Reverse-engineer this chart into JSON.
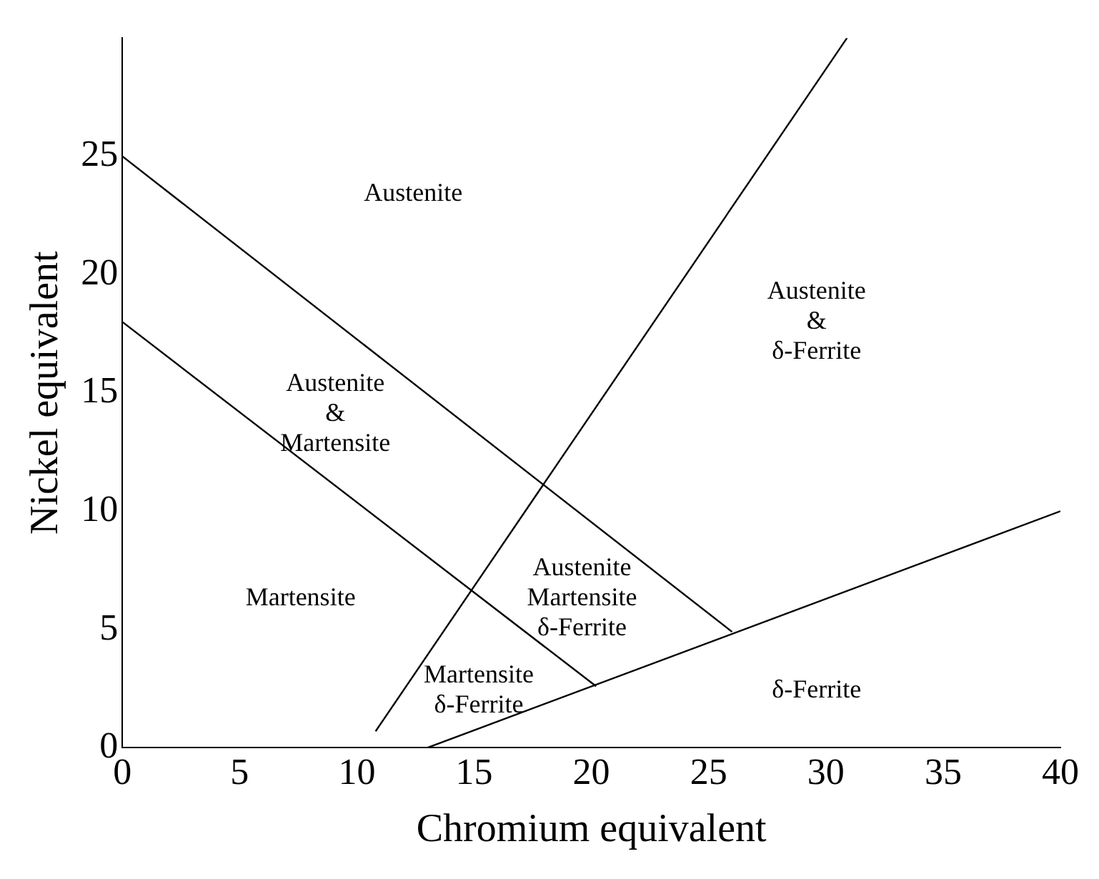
{
  "chart_data": {
    "type": "line",
    "xlabel": "Chromium equivalent",
    "ylabel": "Nickel equivalent",
    "xlim": [
      0,
      40
    ],
    "ylim": [
      0,
      30
    ],
    "xticks": [
      0,
      5,
      10,
      15,
      20,
      25,
      30,
      35,
      40
    ],
    "yticks": [
      0,
      5,
      10,
      15,
      20,
      25
    ],
    "grid": false,
    "legend": false,
    "marker": "none",
    "line_style": "solid",
    "series": [
      {
        "color": "#000000",
        "x": [
          0,
          26
        ],
        "values": [
          25,
          4.9
        ]
      },
      {
        "color": "#000000",
        "x": [
          0,
          20.2
        ],
        "values": [
          18,
          2.6
        ]
      },
      {
        "color": "#000000",
        "x": [
          10.8,
          30.9
        ],
        "values": [
          0.7,
          30
        ]
      },
      {
        "color": "#000000",
        "x": [
          13,
          40
        ],
        "values": [
          0,
          10
        ]
      }
    ],
    "annotations": [
      "Austenite",
      "Austenite\n&\nδ-Ferrite",
      "Austenite\n&\nMartensite",
      "Martensite",
      "Austenite\nMartensite\nδ-Ferrite",
      "Martensite\nδ-Ferrite",
      "δ-Ferrite"
    ]
  }
}
